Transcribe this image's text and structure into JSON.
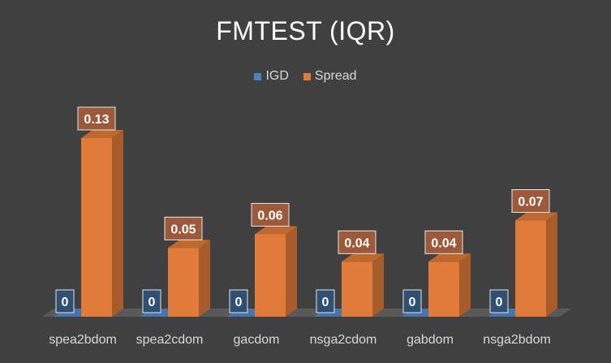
{
  "chart_data": {
    "type": "bar",
    "title": "FMTEST (IQR)",
    "categories": [
      "spea2bdom",
      "spea2cdom",
      "gacdom",
      "nsga2cdom",
      "gabdom",
      "nsga2bdom"
    ],
    "series": [
      {
        "name": "IGD",
        "color": "#4f81bd",
        "values": [
          0,
          0,
          0,
          0,
          0,
          0
        ],
        "labels": [
          "0",
          "0",
          "0",
          "0",
          "0",
          "0"
        ]
      },
      {
        "name": "Spread",
        "color": "#e07b39",
        "values": [
          0.13,
          0.05,
          0.06,
          0.04,
          0.04,
          0.07
        ],
        "labels": [
          "0.13",
          "0.05",
          "0.06",
          "0.04",
          "0.04",
          "0.07"
        ]
      }
    ],
    "ylim": [
      0,
      0.13
    ],
    "xlabel": "",
    "ylabel": "",
    "legend": "top-center",
    "grid": false
  }
}
